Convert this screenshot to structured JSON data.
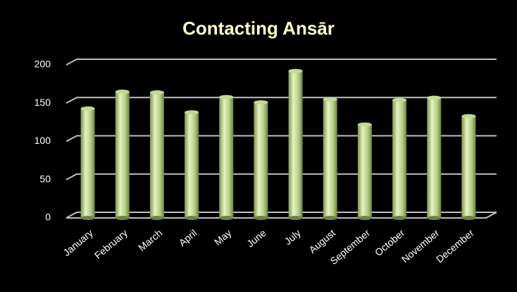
{
  "chart_data": {
    "type": "bar",
    "title": "Contacting Ansār",
    "categories": [
      "January",
      "February",
      "March",
      "April",
      "May",
      "June",
      "July",
      "August",
      "September",
      "October",
      "November",
      "December"
    ],
    "values": [
      143,
      165,
      164,
      138,
      158,
      151,
      192,
      155,
      122,
      154,
      157,
      133
    ],
    "color": "#c4d996",
    "ylim": [
      0,
      200
    ],
    "yticks": [
      0,
      50,
      100,
      150,
      200
    ],
    "grid": true
  }
}
